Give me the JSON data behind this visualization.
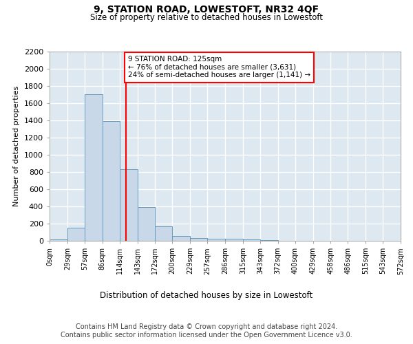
{
  "title": "9, STATION ROAD, LOWESTOFT, NR32 4QF",
  "subtitle": "Size of property relative to detached houses in Lowestoft",
  "xlabel": "Distribution of detached houses by size in Lowestoft",
  "ylabel": "Number of detached properties",
  "bar_color": "#c8d8e8",
  "bar_edge_color": "#6699bb",
  "background_color": "#dde8f0",
  "grid_color": "#ffffff",
  "vline_x": 125,
  "vline_color": "red",
  "annotation_text": "9 STATION ROAD: 125sqm\n← 76% of detached houses are smaller (3,631)\n24% of semi-detached houses are larger (1,141) →",
  "annotation_box_color": "white",
  "annotation_box_edge": "red",
  "bin_edges": [
    0,
    29,
    57,
    86,
    114,
    143,
    172,
    200,
    229,
    257,
    286,
    315,
    343,
    372,
    400,
    429,
    458,
    486,
    515,
    543,
    572
  ],
  "bin_counts": [
    15,
    155,
    1700,
    1390,
    830,
    390,
    165,
    60,
    35,
    25,
    25,
    20,
    5,
    0,
    0,
    0,
    0,
    0,
    0,
    0
  ],
  "ylim": [
    0,
    2200
  ],
  "yticks": [
    0,
    200,
    400,
    600,
    800,
    1000,
    1200,
    1400,
    1600,
    1800,
    2000,
    2200
  ],
  "footer": "Contains HM Land Registry data © Crown copyright and database right 2024.\nContains public sector information licensed under the Open Government Licence v3.0.",
  "footer_fontsize": 7.0,
  "title_fontsize": 10,
  "subtitle_fontsize": 8.5,
  "ylabel_fontsize": 8,
  "xlabel_fontsize": 8.5
}
